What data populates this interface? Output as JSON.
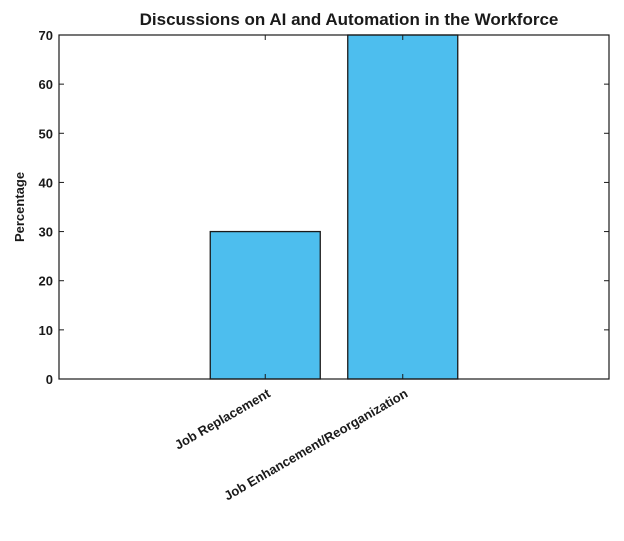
{
  "chart_data": {
    "type": "bar",
    "title": "Discussions on AI and Automation in the Workforce",
    "xlabel": "",
    "ylabel": "Percentage",
    "categories": [
      "Job Replacement",
      "Job Enhancement/Reorganization"
    ],
    "values": [
      30,
      70
    ],
    "ylim": [
      0,
      70
    ],
    "yticks": [
      0,
      10,
      20,
      30,
      40,
      50,
      60,
      70
    ],
    "grid": false,
    "bar_color": "#4dbeee",
    "bar_edge_color": "#1a1a1a"
  }
}
